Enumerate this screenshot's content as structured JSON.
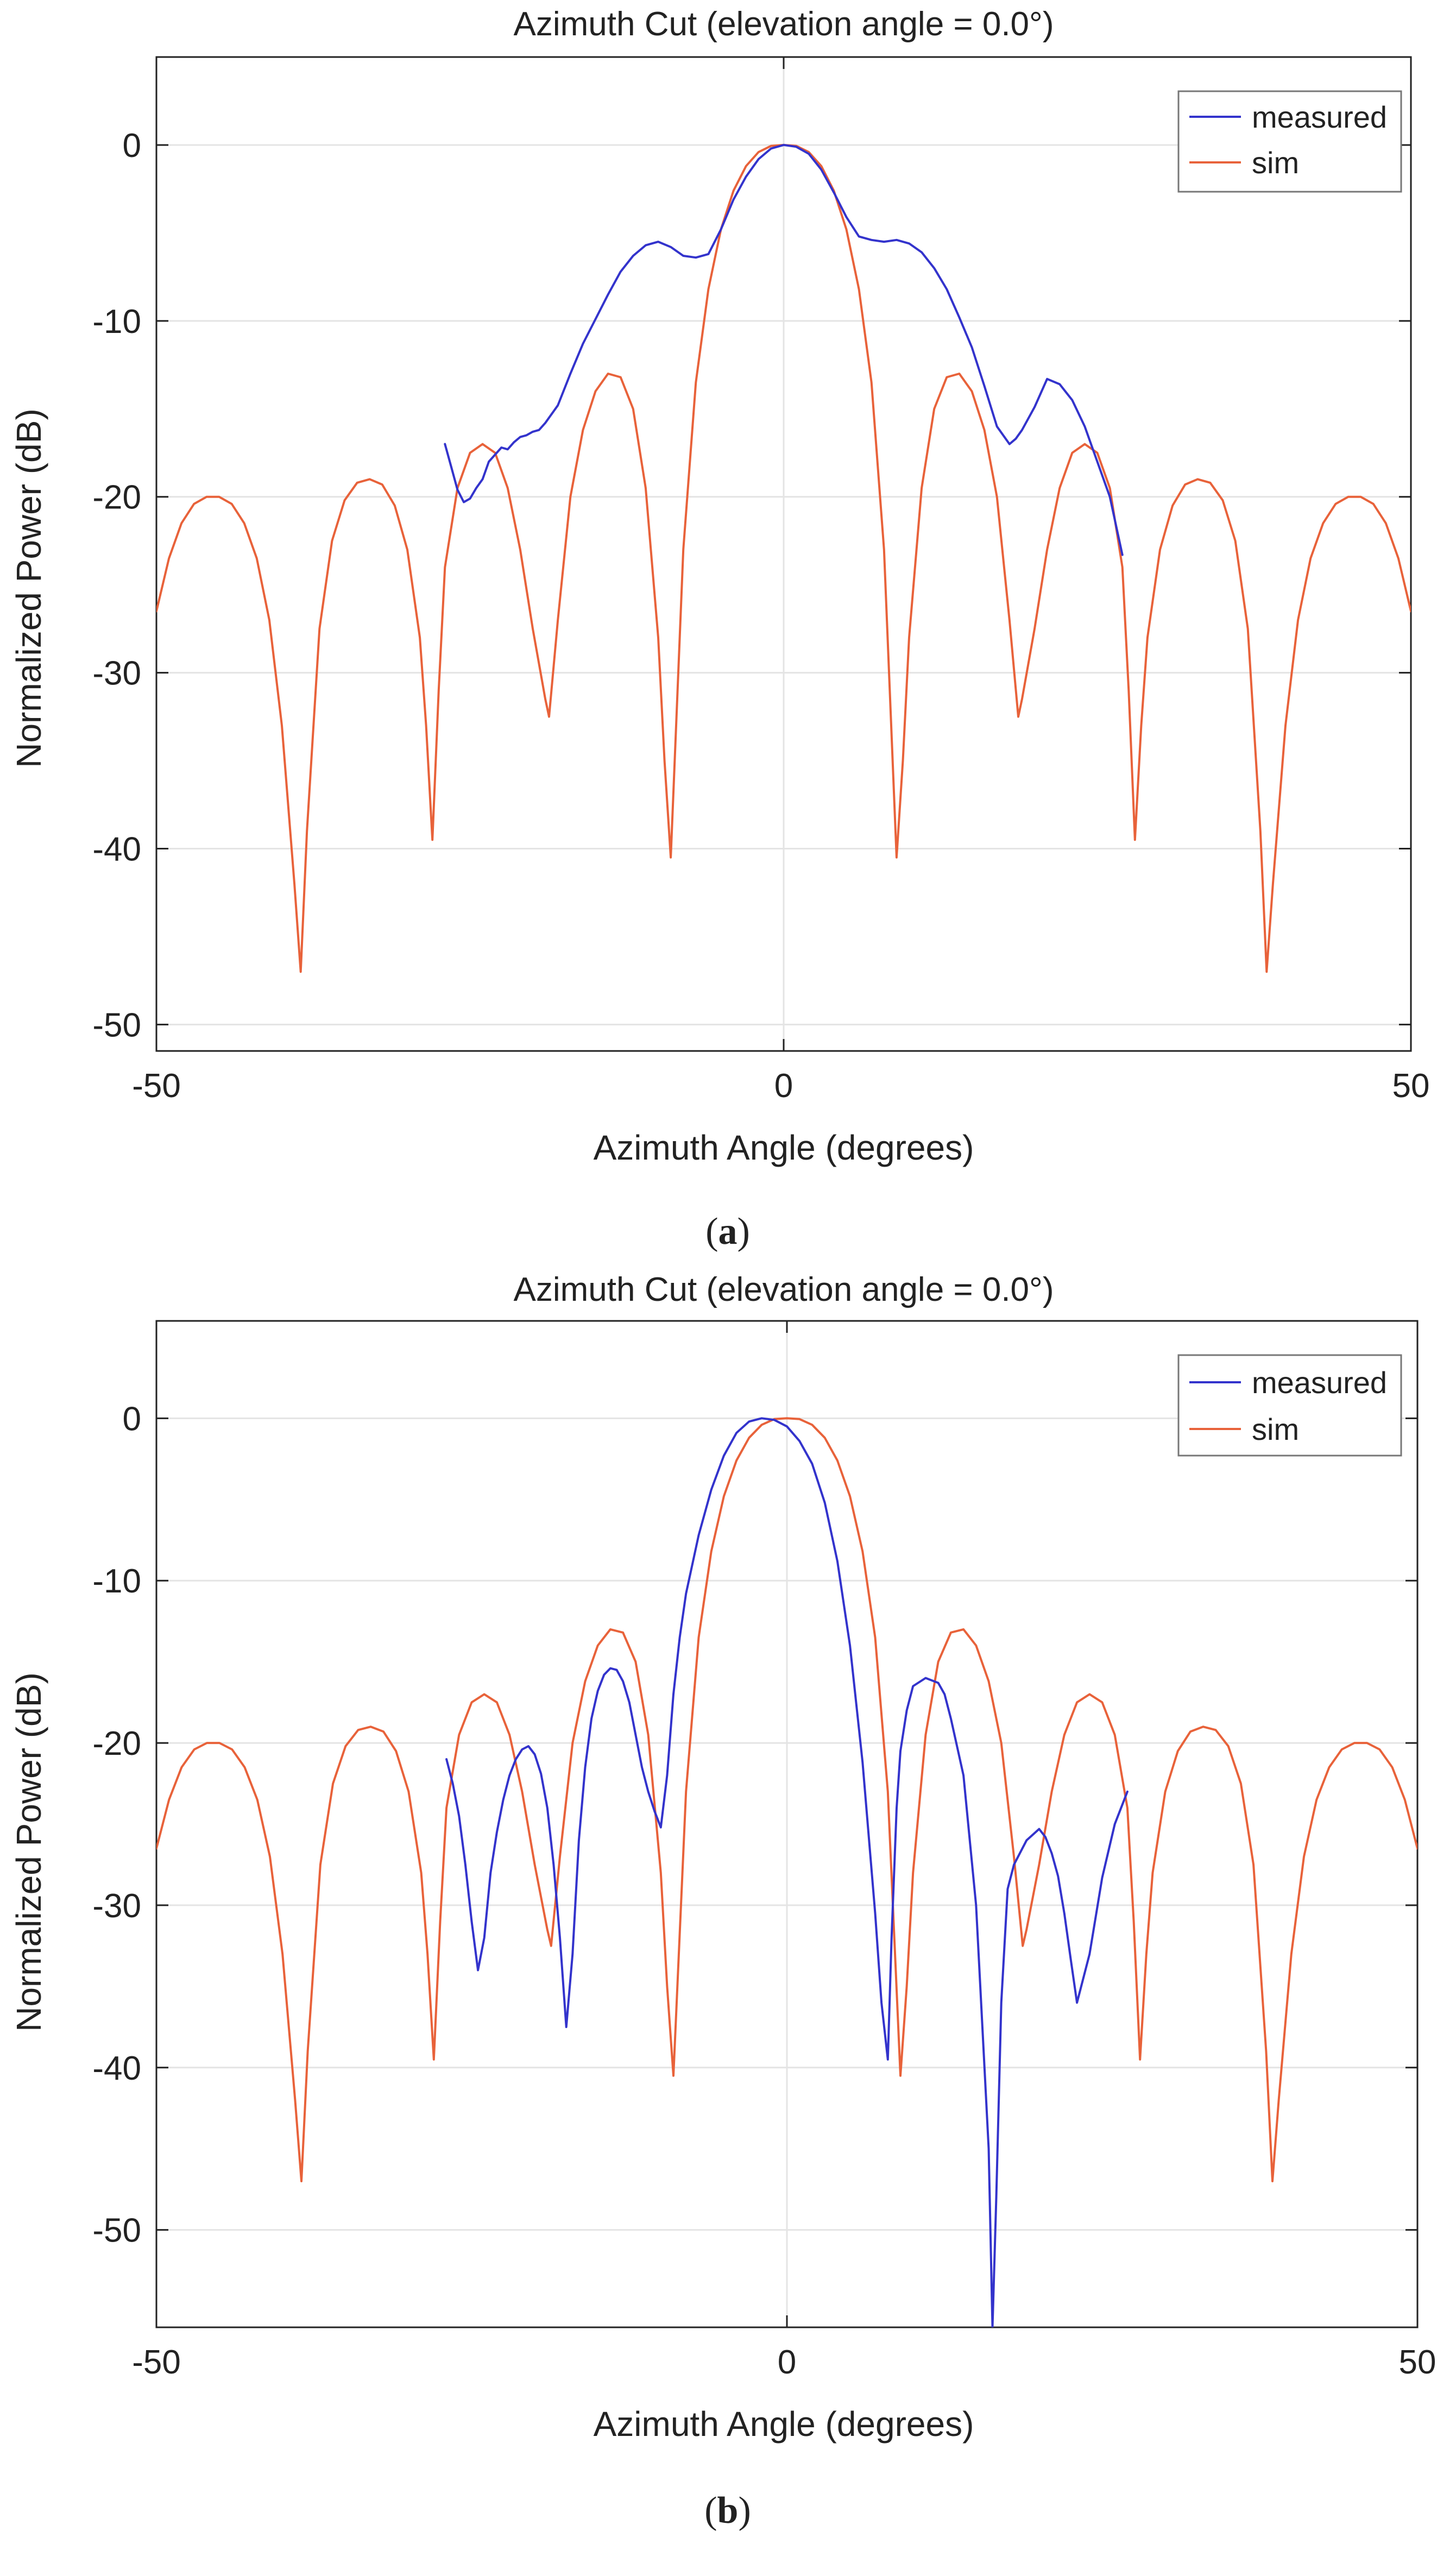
{
  "colors": {
    "measured": "#3333cc",
    "sim": "#e8623a",
    "axis": "#222222",
    "grid": "#e4e4e4",
    "text": "#222222"
  },
  "chart_data": [
    {
      "type": "line",
      "panel_label": "a",
      "title": "Azimuth Cut (elevation angle = 0.0°)",
      "xlabel": "Azimuth Angle (degrees)",
      "ylabel": "Normalized Power (dB)",
      "xlim": [
        -50,
        50
      ],
      "ylim": [
        -51.5,
        5
      ],
      "xticks": [
        -50,
        0,
        50
      ],
      "yticks": [
        0,
        -10,
        -20,
        -30,
        -40,
        -50
      ],
      "grid": true,
      "legend_position": "top-right",
      "series": [
        {
          "name": "sim",
          "color_key": "sim",
          "x": [
            -50,
            -49,
            -48,
            -47,
            -46,
            -45,
            -44,
            -43,
            -42,
            -41,
            -40,
            -39,
            -38.5,
            -38,
            -37,
            -36,
            -35,
            -34,
            -33,
            -32,
            -31,
            -30,
            -29,
            -28.5,
            -28,
            -27.5,
            -27,
            -26,
            -25,
            -24,
            -23,
            -22,
            -21,
            -20,
            -19,
            -18.7,
            -18,
            -17,
            -16,
            -15,
            -14,
            -13,
            -12,
            -11,
            -10,
            -9.5,
            -9,
            -8,
            -7,
            -6,
            -5,
            -4,
            -3,
            -2,
            -1,
            0,
            1,
            2,
            3,
            4,
            5,
            6,
            7,
            8,
            9,
            9.5,
            10,
            11,
            12,
            13,
            14,
            15,
            16,
            17,
            18,
            18.7,
            19,
            20,
            21,
            22,
            23,
            24,
            25,
            26,
            27,
            27.5,
            28,
            28.5,
            29,
            30,
            31,
            32,
            33,
            34,
            35,
            36,
            37,
            38,
            38.5,
            39,
            40,
            41,
            42,
            43,
            44,
            45,
            46,
            47,
            48,
            49,
            50
          ],
          "y": [
            -26.5,
            -23.5,
            -21.5,
            -20.4,
            -20,
            -20,
            -20.4,
            -21.5,
            -23.5,
            -27,
            -33,
            -42,
            -47,
            -39,
            -27.5,
            -22.5,
            -20.2,
            -19.2,
            -19,
            -19.3,
            -20.5,
            -23,
            -28,
            -33,
            -39.5,
            -31,
            -24,
            -19.5,
            -17.5,
            -17,
            -17.5,
            -19.5,
            -23,
            -27.5,
            -31.5,
            -32.5,
            -27,
            -20,
            -16.2,
            -14,
            -13,
            -13.2,
            -15,
            -19.5,
            -28,
            -35,
            -40.5,
            -23,
            -13.5,
            -8.2,
            -4.8,
            -2.6,
            -1.2,
            -0.4,
            -0.05,
            0,
            -0.05,
            -0.4,
            -1.2,
            -2.6,
            -4.8,
            -8.2,
            -13.5,
            -23,
            -40.5,
            -35,
            -28,
            -19.5,
            -15,
            -13.2,
            -13,
            -14,
            -16.2,
            -20,
            -27,
            -32.5,
            -31.5,
            -27.5,
            -23,
            -19.5,
            -17.5,
            -17,
            -17.5,
            -19.5,
            -24,
            -31,
            -39.5,
            -33,
            -28,
            -23,
            -20.5,
            -19.3,
            -19,
            -19.2,
            -20.2,
            -22.5,
            -27.5,
            -39,
            -47,
            -42,
            -33,
            -27,
            -23.5,
            -21.5,
            -20.4,
            -20,
            -20,
            -20.4,
            -21.5,
            -23.5,
            -26.5
          ]
        },
        {
          "name": "measured",
          "color_key": "measured",
          "x": [
            -27,
            -26.5,
            -26,
            -25.5,
            -25,
            -24.5,
            -24,
            -23.5,
            -23,
            -22.5,
            -22,
            -21.5,
            -21,
            -20.5,
            -20,
            -19.5,
            -19,
            -18,
            -17,
            -16,
            -15,
            -14,
            -13,
            -12,
            -11,
            -10,
            -9,
            -8,
            -7,
            -6,
            -5,
            -4,
            -3,
            -2,
            -1,
            0,
            1,
            2,
            3,
            4,
            5,
            6,
            7,
            8,
            9,
            10,
            11,
            12,
            13,
            14,
            15,
            16,
            17,
            18,
            18.5,
            19,
            20,
            21,
            22,
            23,
            24,
            25,
            26,
            27
          ],
          "y": [
            -17,
            -18.3,
            -19.6,
            -20.3,
            -20.1,
            -19.5,
            -19,
            -18,
            -17.6,
            -17.2,
            -17.3,
            -16.9,
            -16.6,
            -16.5,
            -16.3,
            -16.2,
            -15.8,
            -14.8,
            -13,
            -11.3,
            -9.9,
            -8.5,
            -7.2,
            -6.3,
            -5.7,
            -5.5,
            -5.8,
            -6.3,
            -6.4,
            -6.2,
            -4.8,
            -3.1,
            -1.8,
            -0.8,
            -0.2,
            0,
            -0.1,
            -0.5,
            -1.4,
            -2.7,
            -4.1,
            -5.2,
            -5.4,
            -5.5,
            -5.4,
            -5.6,
            -6.1,
            -7,
            -8.2,
            -9.8,
            -11.5,
            -13.7,
            -16,
            -17,
            -16.7,
            -16.2,
            -14.9,
            -13.3,
            -13.6,
            -14.5,
            -16,
            -18,
            -20,
            -23.3
          ]
        }
      ]
    },
    {
      "type": "line",
      "panel_label": "b",
      "title": "Azimuth Cut (elevation angle = 0.0°)",
      "xlabel": "Azimuth Angle (degrees)",
      "ylabel": "Normalized Power (dB)",
      "xlim": [
        -50,
        50
      ],
      "ylim": [
        -56,
        6
      ],
      "xticks": [
        -50,
        0,
        50
      ],
      "yticks": [
        0,
        -10,
        -20,
        -30,
        -40,
        -50
      ],
      "grid": true,
      "legend_position": "top-right",
      "series": [
        {
          "name": "sim",
          "color_key": "sim",
          "x": [
            -50,
            -49,
            -48,
            -47,
            -46,
            -45,
            -44,
            -43,
            -42,
            -41,
            -40,
            -39,
            -38.5,
            -38,
            -37,
            -36,
            -35,
            -34,
            -33,
            -32,
            -31,
            -30,
            -29,
            -28.5,
            -28,
            -27.5,
            -27,
            -26,
            -25,
            -24,
            -23,
            -22,
            -21,
            -20,
            -19,
            -18.7,
            -18,
            -17,
            -16,
            -15,
            -14,
            -13,
            -12,
            -11,
            -10,
            -9.5,
            -9,
            -8,
            -7,
            -6,
            -5,
            -4,
            -3,
            -2,
            -1,
            0,
            1,
            2,
            3,
            4,
            5,
            6,
            7,
            8,
            9,
            9.5,
            10,
            11,
            12,
            13,
            14,
            15,
            16,
            17,
            18,
            18.7,
            19,
            20,
            21,
            22,
            23,
            24,
            25,
            26,
            27,
            27.5,
            28,
            28.5,
            29,
            30,
            31,
            32,
            33,
            34,
            35,
            36,
            37,
            38,
            38.5,
            39,
            40,
            41,
            42,
            43,
            44,
            45,
            46,
            47,
            48,
            49,
            50
          ],
          "y": [
            -26.5,
            -23.5,
            -21.5,
            -20.4,
            -20,
            -20,
            -20.4,
            -21.5,
            -23.5,
            -27,
            -33,
            -42,
            -47,
            -39,
            -27.5,
            -22.5,
            -20.2,
            -19.2,
            -19,
            -19.3,
            -20.5,
            -23,
            -28,
            -33,
            -39.5,
            -31,
            -24,
            -19.5,
            -17.5,
            -17,
            -17.5,
            -19.5,
            -23,
            -27.5,
            -31.5,
            -32.5,
            -27,
            -20,
            -16.2,
            -14,
            -13,
            -13.2,
            -15,
            -19.5,
            -28,
            -35,
            -40.5,
            -23,
            -13.5,
            -8.2,
            -4.8,
            -2.6,
            -1.2,
            -0.4,
            -0.05,
            0,
            -0.05,
            -0.4,
            -1.2,
            -2.6,
            -4.8,
            -8.2,
            -13.5,
            -23,
            -40.5,
            -35,
            -28,
            -19.5,
            -15,
            -13.2,
            -13,
            -14,
            -16.2,
            -20,
            -27,
            -32.5,
            -31.5,
            -27.5,
            -23,
            -19.5,
            -17.5,
            -17,
            -17.5,
            -19.5,
            -24,
            -31,
            -39.5,
            -33,
            -28,
            -23,
            -20.5,
            -19.3,
            -19,
            -19.2,
            -20.2,
            -22.5,
            -27.5,
            -39,
            -47,
            -42,
            -33,
            -27,
            -23.5,
            -21.5,
            -20.4,
            -20,
            -20,
            -20.4,
            -21.5,
            -23.5,
            -26.5
          ]
        },
        {
          "name": "measured",
          "color_key": "measured",
          "x": [
            -27,
            -26.5,
            -26,
            -25.5,
            -25,
            -24.5,
            -24,
            -23.5,
            -23,
            -22.5,
            -22,
            -21.5,
            -21,
            -20.5,
            -20,
            -19.5,
            -19,
            -18.5,
            -18,
            -17.5,
            -17,
            -16.5,
            -16,
            -15.5,
            -15,
            -14.5,
            -14,
            -13.5,
            -13,
            -12.5,
            -12,
            -11.5,
            -11,
            -10.5,
            -10,
            -9.5,
            -9,
            -8.5,
            -8,
            -7,
            -6,
            -5,
            -4,
            -3,
            -2,
            -1,
            0,
            1,
            2,
            3,
            4,
            5,
            6,
            7,
            7.5,
            8,
            8.3,
            8.7,
            9,
            9.5,
            10,
            11,
            12,
            12.5,
            13,
            14,
            15,
            16,
            16.3,
            16.6,
            17,
            17.5,
            18,
            19,
            20,
            20.5,
            21,
            21.5,
            22,
            22.5,
            23,
            24,
            25,
            26,
            27
          ],
          "y": [
            -21,
            -22.5,
            -24.5,
            -27.5,
            -31,
            -34,
            -32,
            -28,
            -25.5,
            -23.5,
            -22,
            -21,
            -20.4,
            -20.2,
            -20.7,
            -21.9,
            -24,
            -27.5,
            -32,
            -37.5,
            -33,
            -26,
            -21.5,
            -18.5,
            -16.8,
            -15.8,
            -15.4,
            -15.5,
            -16.2,
            -17.5,
            -19.5,
            -21.5,
            -23,
            -24.2,
            -25.2,
            -22,
            -17,
            -13.5,
            -10.8,
            -7.2,
            -4.4,
            -2.3,
            -0.9,
            -0.2,
            0,
            -0.1,
            -0.5,
            -1.4,
            -2.8,
            -5.2,
            -8.8,
            -14,
            -21.2,
            -30.5,
            -36,
            -39.5,
            -32,
            -24,
            -20.5,
            -18,
            -16.5,
            -16,
            -16.3,
            -17,
            -18.5,
            -22,
            -30,
            -45,
            -56,
            -48,
            -36,
            -29,
            -27.5,
            -26,
            -25.3,
            -25.8,
            -26.8,
            -28.2,
            -30.5,
            -33.3,
            -36,
            -33,
            -28.3,
            -25,
            -23
          ]
        }
      ]
    }
  ]
}
